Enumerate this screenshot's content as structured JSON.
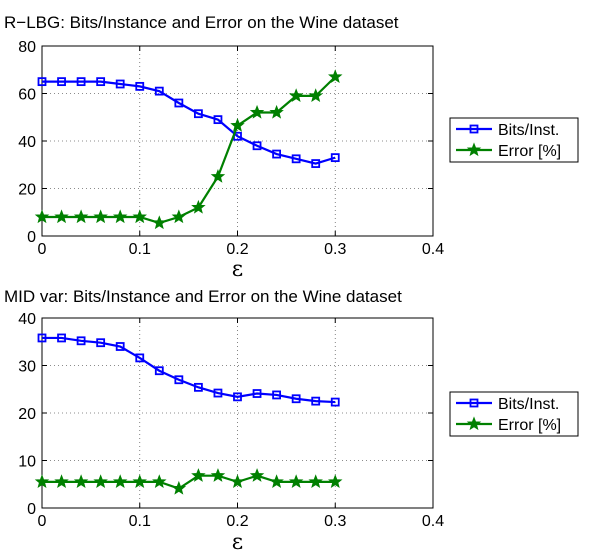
{
  "chart_data": [
    {
      "type": "line",
      "title": "R−LBG: Bits/Instance and Error on the Wine dataset",
      "xlabel": "ε",
      "ylabel": "",
      "xlim": [
        0,
        0.4
      ],
      "ylim": [
        0,
        80
      ],
      "xticks": [
        "0",
        "0.1",
        "0.2",
        "0.3",
        "0.4"
      ],
      "xtick_values": [
        0,
        0.1,
        0.2,
        0.3,
        0.4
      ],
      "yticks": [
        "0",
        "20",
        "40",
        "60",
        "80"
      ],
      "ytick_values": [
        0,
        20,
        40,
        60,
        80
      ],
      "grid": true,
      "legend_position": "outside-right",
      "x": [
        0,
        0.02,
        0.04,
        0.06,
        0.08,
        0.1,
        0.12,
        0.14,
        0.16,
        0.18,
        0.2,
        0.22,
        0.24,
        0.26,
        0.28,
        0.3
      ],
      "series": [
        {
          "name": "Bits/Inst.",
          "color": "#0000ff",
          "marker": "square",
          "values": [
            65,
            65,
            65,
            65,
            64,
            63,
            61,
            56,
            51.5,
            49,
            42,
            38,
            34.5,
            32.5,
            30.5,
            33
          ]
        },
        {
          "name": "Error [%]",
          "color": "#008000",
          "marker": "star",
          "values": [
            8,
            8,
            8,
            8,
            8,
            8,
            5.5,
            8,
            12,
            25,
            46.5,
            52,
            52,
            59,
            59,
            67
          ]
        }
      ]
    },
    {
      "type": "line",
      "title": "MID var: Bits/Instance and Error on the Wine dataset",
      "xlabel": "ε",
      "ylabel": "",
      "xlim": [
        0,
        0.4
      ],
      "ylim": [
        0,
        40
      ],
      "xticks": [
        "0",
        "0.1",
        "0.2",
        "0.3",
        "0.4"
      ],
      "xtick_values": [
        0,
        0.1,
        0.2,
        0.3,
        0.4
      ],
      "yticks": [
        "0",
        "10",
        "20",
        "30",
        "40"
      ],
      "ytick_values": [
        0,
        10,
        20,
        30,
        40
      ],
      "grid": true,
      "legend_position": "outside-right",
      "x": [
        0,
        0.02,
        0.04,
        0.06,
        0.08,
        0.1,
        0.12,
        0.14,
        0.16,
        0.18,
        0.2,
        0.22,
        0.24,
        0.26,
        0.28,
        0.3
      ],
      "series": [
        {
          "name": "Bits/Inst.",
          "color": "#0000ff",
          "marker": "square",
          "values": [
            35.8,
            35.8,
            35.2,
            34.8,
            34,
            31.6,
            28.9,
            27,
            25.4,
            24.2,
            23.4,
            24.1,
            23.8,
            23,
            22.5,
            22.3
          ]
        },
        {
          "name": "Error [%]",
          "color": "#008000",
          "marker": "star",
          "values": [
            5.5,
            5.5,
            5.5,
            5.5,
            5.5,
            5.5,
            5.5,
            4.1,
            6.8,
            6.8,
            5.5,
            6.8,
            5.5,
            5.5,
            5.5,
            5.5
          ]
        }
      ]
    }
  ]
}
